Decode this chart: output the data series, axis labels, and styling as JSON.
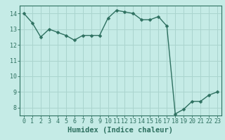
{
  "x": [
    0,
    1,
    2,
    3,
    4,
    5,
    6,
    7,
    8,
    9,
    10,
    11,
    12,
    13,
    14,
    15,
    16,
    17,
    18,
    19,
    20,
    21,
    22,
    23
  ],
  "y": [
    14.0,
    13.4,
    12.5,
    13.0,
    12.8,
    12.6,
    12.3,
    12.6,
    12.6,
    12.6,
    13.7,
    14.2,
    14.1,
    14.0,
    13.6,
    13.6,
    13.8,
    13.2,
    7.6,
    7.9,
    8.4,
    8.4,
    8.8,
    9.0
  ],
  "line_color": "#2e7060",
  "bg_color": "#c5ebe6",
  "grid_color": "#aad4ce",
  "tick_color": "#2e7060",
  "xlabel": "Humidex (Indice chaleur)",
  "ylim": [
    7.5,
    14.5
  ],
  "xlim": [
    -0.5,
    23.5
  ],
  "yticks": [
    8,
    9,
    10,
    11,
    12,
    13,
    14
  ],
  "xticks": [
    0,
    1,
    2,
    3,
    4,
    5,
    6,
    7,
    8,
    9,
    10,
    11,
    12,
    13,
    14,
    15,
    16,
    17,
    18,
    19,
    20,
    21,
    22,
    23
  ],
  "font_color": "#2e7060",
  "marker_size": 2.5,
  "line_width": 1.0,
  "tick_fontsize": 6.0,
  "xlabel_fontsize": 7.5
}
